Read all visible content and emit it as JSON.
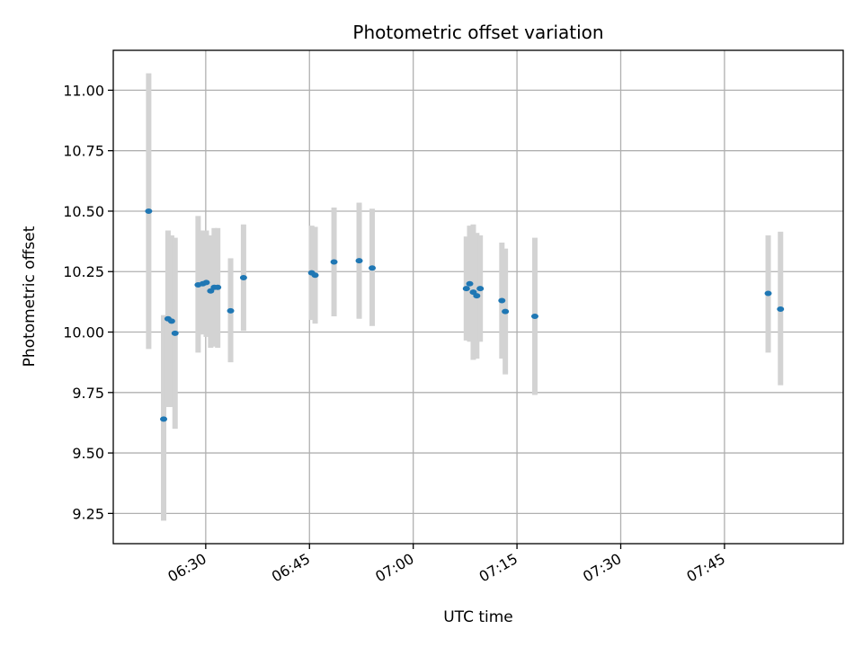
{
  "chart_data": {
    "type": "scatter",
    "title": "Photometric offset variation",
    "xlabel": "UTC time",
    "ylabel": "Photometric offset",
    "xlim": [
      "06:16:38",
      "08:02:10"
    ],
    "ylim": [
      9.125,
      11.165
    ],
    "grid": true,
    "x_ticks": [
      "06:30",
      "06:45",
      "07:00",
      "07:15",
      "07:30",
      "07:45"
    ],
    "y_ticks": [
      "9.25",
      "9.50",
      "9.75",
      "10.00",
      "10.25",
      "10.50",
      "10.75",
      "11.00"
    ],
    "colors": {
      "point": "#1f77b4",
      "errorbar": "#d3d3d3",
      "grid": "#b0b0b0"
    },
    "points": [
      {
        "t": "06:21:45",
        "y": 10.5,
        "ylo": 9.93,
        "yhi": 11.07
      },
      {
        "t": "06:23:55",
        "y": 9.64,
        "ylo": 9.22,
        "yhi": 10.07
      },
      {
        "t": "06:24:33",
        "y": 10.055,
        "ylo": 9.69,
        "yhi": 10.42
      },
      {
        "t": "06:25:04",
        "y": 10.045,
        "ylo": 9.69,
        "yhi": 10.4
      },
      {
        "t": "06:25:34",
        "y": 9.995,
        "ylo": 9.6,
        "yhi": 10.39
      },
      {
        "t": "06:28:54",
        "y": 10.195,
        "ylo": 9.915,
        "yhi": 10.48
      },
      {
        "t": "06:29:35",
        "y": 10.2,
        "ylo": 9.99,
        "yhi": 10.42
      },
      {
        "t": "06:30:05",
        "y": 10.205,
        "ylo": 9.98,
        "yhi": 10.42
      },
      {
        "t": "06:30:43",
        "y": 10.17,
        "ylo": 9.935,
        "yhi": 10.4
      },
      {
        "t": "06:31:14",
        "y": 10.185,
        "ylo": 9.94,
        "yhi": 10.43
      },
      {
        "t": "06:31:44",
        "y": 10.185,
        "ylo": 9.935,
        "yhi": 10.43
      },
      {
        "t": "06:33:36",
        "y": 10.088,
        "ylo": 9.875,
        "yhi": 10.305
      },
      {
        "t": "06:35:28",
        "y": 10.225,
        "ylo": 10.005,
        "yhi": 10.445
      },
      {
        "t": "06:45:19",
        "y": 10.245,
        "ylo": 10.05,
        "yhi": 10.44
      },
      {
        "t": "06:45:49",
        "y": 10.235,
        "ylo": 10.035,
        "yhi": 10.435
      },
      {
        "t": "06:48:33",
        "y": 10.29,
        "ylo": 10.065,
        "yhi": 10.515
      },
      {
        "t": "06:52:11",
        "y": 10.295,
        "ylo": 10.055,
        "yhi": 10.535
      },
      {
        "t": "06:54:04",
        "y": 10.265,
        "ylo": 10.025,
        "yhi": 10.51
      },
      {
        "t": "07:07:41",
        "y": 10.18,
        "ylo": 9.965,
        "yhi": 10.395
      },
      {
        "t": "07:08:10",
        "y": 10.2,
        "ylo": 9.96,
        "yhi": 10.44
      },
      {
        "t": "07:08:41",
        "y": 10.165,
        "ylo": 9.885,
        "yhi": 10.445
      },
      {
        "t": "07:09:11",
        "y": 10.15,
        "ylo": 9.89,
        "yhi": 10.41
      },
      {
        "t": "07:09:41",
        "y": 10.18,
        "ylo": 9.96,
        "yhi": 10.4
      },
      {
        "t": "07:12:49",
        "y": 10.13,
        "ylo": 9.89,
        "yhi": 10.37
      },
      {
        "t": "07:13:19",
        "y": 10.085,
        "ylo": 9.825,
        "yhi": 10.345
      },
      {
        "t": "07:17:35",
        "y": 10.065,
        "ylo": 9.74,
        "yhi": 10.39
      },
      {
        "t": "07:51:19",
        "y": 10.16,
        "ylo": 9.915,
        "yhi": 10.4
      },
      {
        "t": "07:53:06",
        "y": 10.095,
        "ylo": 9.78,
        "yhi": 10.415
      }
    ]
  }
}
